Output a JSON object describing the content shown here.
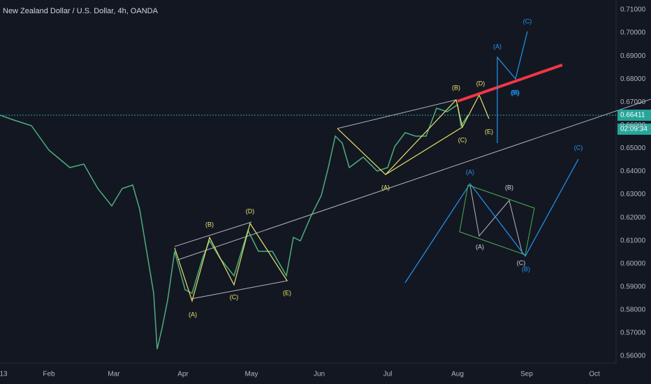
{
  "header": {
    "title": "New Zealand Dollar / U.S. Dollar, 4h, OANDA"
  },
  "price_axis": [
    "0.71000",
    "0.70000",
    "0.69000",
    "0.68000",
    "0.67000",
    "0.66000",
    "0.65000",
    "0.64000",
    "0.63000",
    "0.62000",
    "0.61000",
    "0.60000",
    "0.59000",
    "0.58000",
    "0.57000",
    "0.56000"
  ],
  "time_axis": [
    "13",
    "Feb",
    "Mar",
    "Apr",
    "May",
    "Jun",
    "Jul",
    "Aug",
    "Sep",
    "Oct"
  ],
  "price_tag": {
    "price": "0.66411",
    "countdown": "02:09:34"
  },
  "wave_labels": [
    "(A)",
    "(B)",
    "(C)",
    "(D)",
    "(E)",
    "(A)",
    "(B)",
    "(C)",
    "(D)",
    "(E)",
    "(A)",
    "(B)",
    "(C)",
    "(A)",
    "(B)",
    "(C)",
    "(A)",
    "(B)",
    "(C)",
    "(B)"
  ]
}
